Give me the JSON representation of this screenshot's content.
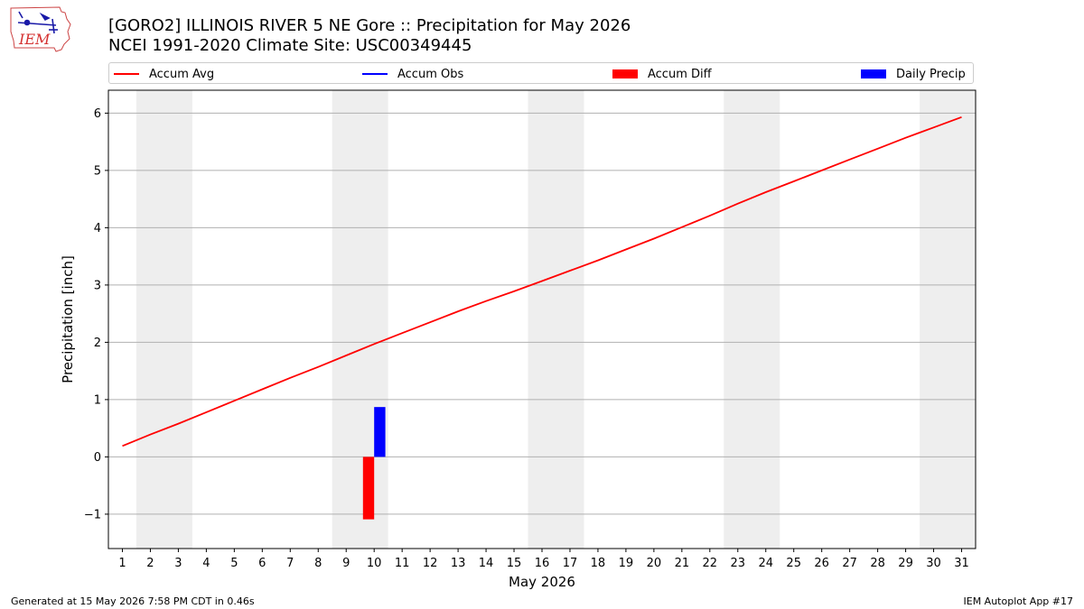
{
  "header": {
    "logo_text": "IEM",
    "title_line1": "[GORO2] ILLINOIS RIVER 5 NE Gore :: Precipitation for May 2026",
    "title_line2": "NCEI 1991-2020 Climate Site: USC00349445"
  },
  "legend": {
    "placement": "top",
    "items": [
      {
        "label": "Accum Avg",
        "kind": "line",
        "color": "#ff0000"
      },
      {
        "label": "Accum Obs",
        "kind": "line",
        "color": "#0000ff"
      },
      {
        "label": "Accum Diff",
        "kind": "box",
        "color": "#ff0000"
      },
      {
        "label": "Daily Precip",
        "kind": "box",
        "color": "#0000ff"
      }
    ]
  },
  "footer": {
    "left": "Generated at 15 May 2026 7:58 PM CDT in 0.46s",
    "right": "IEM Autoplot App #17"
  },
  "chart_data": {
    "type": "line",
    "title": "[GORO2] ILLINOIS RIVER 5 NE Gore :: Precipitation for May 2026",
    "subtitle": "NCEI 1991-2020 Climate Site: USC00349445",
    "xlabel": "May 2026",
    "ylabel": "Precipitation [inch]",
    "xlim": [
      0.5,
      31.5
    ],
    "ylim": [
      -1.6,
      6.4
    ],
    "grid": "y",
    "x_ticks": [
      1,
      2,
      3,
      4,
      5,
      6,
      7,
      8,
      9,
      10,
      11,
      12,
      13,
      14,
      15,
      16,
      17,
      18,
      19,
      20,
      21,
      22,
      23,
      24,
      25,
      26,
      27,
      28,
      29,
      30,
      31
    ],
    "y_ticks": [
      -1,
      0,
      1,
      2,
      3,
      4,
      5,
      6
    ],
    "y_tick_labels": [
      "−1",
      "0",
      "1",
      "2",
      "3",
      "4",
      "5",
      "6"
    ],
    "weekend_shading": [
      [
        2,
        3
      ],
      [
        9,
        10
      ],
      [
        16,
        17
      ],
      [
        23,
        24
      ],
      [
        30,
        31
      ]
    ],
    "series": [
      {
        "name": "Accum Avg",
        "type": "line",
        "color": "#ff0000",
        "x": [
          1,
          2,
          3,
          4,
          5,
          6,
          7,
          8,
          9,
          10,
          11,
          12,
          13,
          14,
          15,
          16,
          17,
          18,
          19,
          20,
          21,
          22,
          23,
          24,
          25,
          26,
          27,
          28,
          29,
          30,
          31
        ],
        "values": [
          0.19,
          0.39,
          0.58,
          0.78,
          0.98,
          1.18,
          1.38,
          1.57,
          1.77,
          1.97,
          2.16,
          2.35,
          2.54,
          2.72,
          2.89,
          3.07,
          3.25,
          3.43,
          3.62,
          3.81,
          4.01,
          4.21,
          4.42,
          4.62,
          4.81,
          5.0,
          5.19,
          5.38,
          5.57,
          5.75,
          5.93
        ]
      },
      {
        "name": "Accum Diff",
        "type": "bar",
        "color": "#ff0000",
        "x": [
          10
        ],
        "values": [
          -1.09
        ]
      },
      {
        "name": "Daily Precip",
        "type": "bar",
        "color": "#0000ff",
        "x": [
          10
        ],
        "values": [
          0.87
        ]
      }
    ]
  }
}
